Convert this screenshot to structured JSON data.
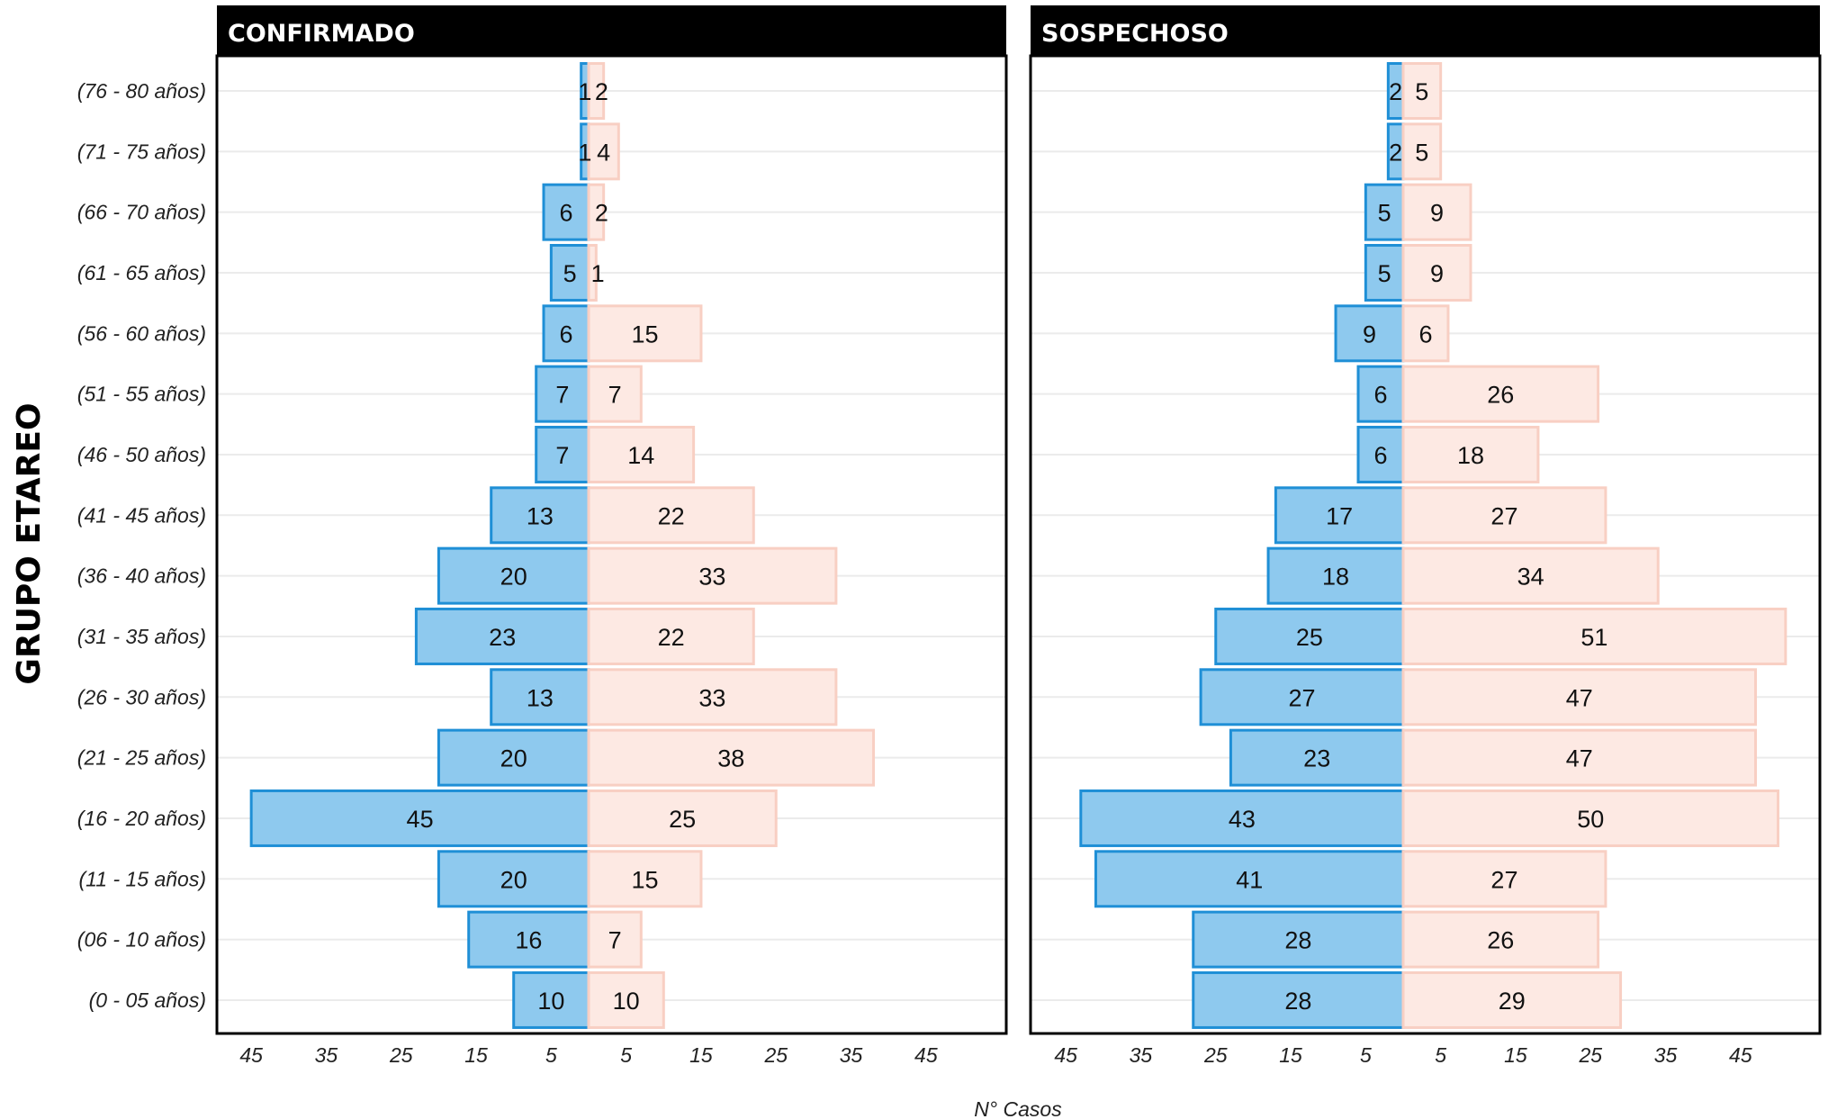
{
  "chart_data": {
    "type": "bar",
    "orientation": "horizontal",
    "layout": "population-pyramid",
    "ylabel": "GRUPO ETAREO",
    "xlabel": "N° Casos",
    "x_tick_labels": [
      "45",
      "35",
      "25",
      "15",
      "5",
      "5",
      "15",
      "25",
      "35",
      "45"
    ],
    "categories": [
      "(76 - 80 años)",
      "(71 - 75 años)",
      "(66 - 70 años)",
      "(61 - 65 años)",
      "(56 - 60 años)",
      "(51 - 55 años)",
      "(46 - 50 años)",
      "(41 - 45 años)",
      "(36 - 40 años)",
      "(31 - 35 años)",
      "(26 - 30 años)",
      "(21 - 25 años)",
      "(16 - 20 años)",
      "(11 - 15 años)",
      "(06 - 10 años)",
      "(0 - 05 años)"
    ],
    "colors": {
      "left_fill": "#8ec9ee",
      "left_stroke": "#1f8fd6",
      "right_fill": "#fde9e3",
      "right_stroke": "#f8cfc3",
      "title_bar": "#000000",
      "grid": "#ebebeb"
    },
    "panels": [
      {
        "title": "CONFIRMADO",
        "left_values": [
          1,
          1,
          6,
          5,
          6,
          7,
          7,
          13,
          20,
          23,
          13,
          20,
          45,
          20,
          16,
          10
        ],
        "right_values": [
          2,
          4,
          2,
          1,
          15,
          7,
          14,
          22,
          33,
          22,
          33,
          38,
          25,
          15,
          7,
          10
        ]
      },
      {
        "title": "SOSPECHOSO",
        "left_values": [
          2,
          2,
          5,
          5,
          9,
          6,
          6,
          17,
          18,
          25,
          27,
          23,
          43,
          41,
          28,
          28
        ],
        "right_values": [
          5,
          5,
          9,
          9,
          6,
          26,
          18,
          27,
          34,
          51,
          47,
          47,
          50,
          27,
          26,
          29
        ]
      }
    ]
  }
}
